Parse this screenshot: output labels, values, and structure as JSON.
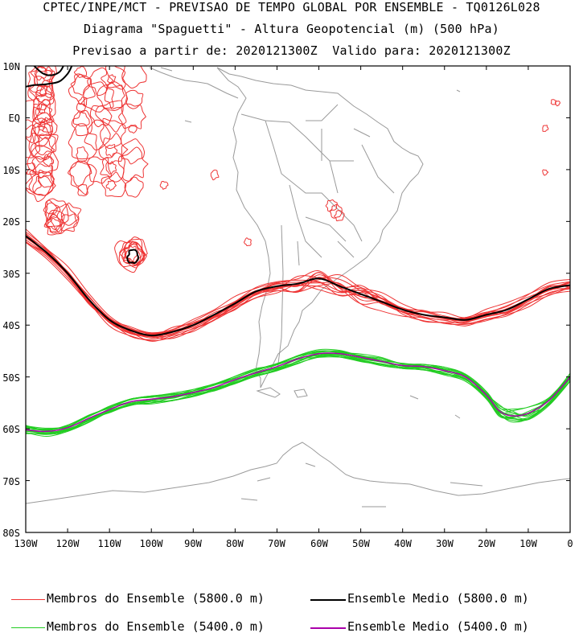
{
  "header": {
    "line1": "CPTEC/INPE/MCT - PREVISAO DE TEMPO GLOBAL POR ENSEMBLE - TQ0126L028",
    "line2": "Diagrama \"Spaguetti\" - Altura Geopotencial (m) (500 hPa)",
    "line3": "Previsao a partir de: 2020121300Z  Valido para: 2020121300Z"
  },
  "axes": {
    "lat_labels": [
      "10N",
      "EQ",
      "10S",
      "20S",
      "30S",
      "40S",
      "50S",
      "60S",
      "70S",
      "80S"
    ],
    "lon_labels": [
      "130W",
      "120W",
      "110W",
      "100W",
      "90W",
      "80W",
      "70W",
      "60W",
      "50W",
      "40W",
      "30W",
      "20W",
      "10W",
      "0"
    ],
    "lat_range": [
      -80,
      10
    ],
    "lon_range": [
      -130,
      0
    ]
  },
  "legend": {
    "member_5800": "Membros do Ensemble (5800.0 m)",
    "mean_5800": "Ensemble Medio (5800.0 m)",
    "member_5400": "Membros do Ensemble (5400.0 m)",
    "mean_5400": "Ensemble Medio (5400.0 m)"
  },
  "colors": {
    "member_5800": "#ee3333",
    "mean_5800": "#000000",
    "member_5400": "#22cc22",
    "mean_5400": "#aa00aa",
    "coast": "#9a9a9a"
  },
  "contours": {
    "mean_5800": [
      [
        -130,
        -22.8
      ],
      [
        -125,
        -26
      ],
      [
        -120,
        -30
      ],
      [
        -115,
        -35
      ],
      [
        -110,
        -39
      ],
      [
        -105,
        -41
      ],
      [
        -100,
        -42
      ],
      [
        -95,
        -41.3
      ],
      [
        -90,
        -40
      ],
      [
        -85,
        -38
      ],
      [
        -80,
        -35.8
      ],
      [
        -75,
        -33.5
      ],
      [
        -70,
        -32.5
      ],
      [
        -65,
        -32
      ],
      [
        -60,
        -31
      ],
      [
        -55,
        -32.5
      ],
      [
        -50,
        -34
      ],
      [
        -45,
        -35.5
      ],
      [
        -40,
        -37
      ],
      [
        -35,
        -38
      ],
      [
        -30,
        -38.5
      ],
      [
        -25,
        -39
      ],
      [
        -20,
        -38
      ],
      [
        -15,
        -37
      ],
      [
        -10,
        -35
      ],
      [
        -5,
        -33
      ],
      [
        0,
        -32.3
      ]
    ],
    "mean_5400": [
      [
        -130,
        -60.2
      ],
      [
        -125,
        -60.5
      ],
      [
        -120,
        -59.8
      ],
      [
        -115,
        -58
      ],
      [
        -110,
        -56.3
      ],
      [
        -105,
        -54.8
      ],
      [
        -100,
        -54.3
      ],
      [
        -95,
        -53.8
      ],
      [
        -90,
        -53
      ],
      [
        -85,
        -52
      ],
      [
        -80,
        -50.5
      ],
      [
        -75,
        -49.2
      ],
      [
        -70,
        -48
      ],
      [
        -65,
        -46.5
      ],
      [
        -60,
        -45.5
      ],
      [
        -55,
        -45.5
      ],
      [
        -50,
        -46.2
      ],
      [
        -45,
        -47
      ],
      [
        -40,
        -47.8
      ],
      [
        -35,
        -48
      ],
      [
        -30,
        -48.8
      ],
      [
        -25,
        -50
      ],
      [
        -20,
        -53.5
      ],
      [
        -17,
        -56.5
      ],
      [
        -14,
        -57.5
      ],
      [
        -10,
        -57
      ],
      [
        -5,
        -54.5
      ],
      [
        0,
        -50
      ]
    ]
  }
}
